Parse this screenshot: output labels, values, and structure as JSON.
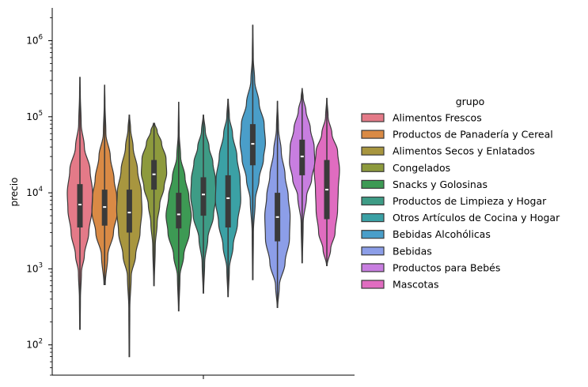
{
  "chart_data": {
    "type": "violin",
    "ylabel": "precio",
    "xlabel": "",
    "yscale": "log",
    "ylim": [
      40,
      2700000
    ],
    "yticks": [
      {
        "value": 100,
        "base": "10",
        "exp": "2"
      },
      {
        "value": 1000,
        "base": "10",
        "exp": "3"
      },
      {
        "value": 10000,
        "base": "10",
        "exp": "4"
      },
      {
        "value": 100000,
        "base": "10",
        "exp": "5"
      },
      {
        "value": 1000000,
        "base": "10",
        "exp": "6"
      }
    ],
    "legend": {
      "title": "grupo",
      "position": "right"
    },
    "series": [
      {
        "name": "Alimentos Frescos",
        "color": "#e47a88",
        "min": 160,
        "q1": 3500,
        "median": 7000,
        "q3": 13000,
        "max": 330000,
        "profile": [
          [
            160,
            0.02
          ],
          [
            400,
            0.04
          ],
          [
            900,
            0.12
          ],
          [
            1500,
            0.35
          ],
          [
            3000,
            0.7
          ],
          [
            6000,
            0.95
          ],
          [
            10000,
            1.0
          ],
          [
            20000,
            0.8
          ],
          [
            40000,
            0.35
          ],
          [
            80000,
            0.1
          ],
          [
            200000,
            0.03
          ],
          [
            330000,
            0.01
          ]
        ]
      },
      {
        "name": "Productos de Panadería y Cereal",
        "color": "#d98a45",
        "min": 620,
        "q1": 3700,
        "median": 6500,
        "q3": 11000,
        "max": 260000,
        "profile": [
          [
            620,
            0.05
          ],
          [
            1500,
            0.25
          ],
          [
            3000,
            0.7
          ],
          [
            5500,
            1.0
          ],
          [
            9000,
            0.95
          ],
          [
            15000,
            0.75
          ],
          [
            30000,
            0.45
          ],
          [
            60000,
            0.1
          ],
          [
            150000,
            0.03
          ],
          [
            260000,
            0.01
          ]
        ]
      },
      {
        "name": "Alimentos Secos y Enlatados",
        "color": "#a8963f",
        "min": 70,
        "q1": 3000,
        "median": 5500,
        "q3": 11000,
        "max": 105000,
        "profile": [
          [
            70,
            0.02
          ],
          [
            300,
            0.04
          ],
          [
            800,
            0.15
          ],
          [
            1500,
            0.5
          ],
          [
            3000,
            0.85
          ],
          [
            6000,
            1.0
          ],
          [
            10000,
            0.95
          ],
          [
            20000,
            0.65
          ],
          [
            40000,
            0.3
          ],
          [
            70000,
            0.1
          ],
          [
            105000,
            0.02
          ]
        ]
      },
      {
        "name": "Congelados",
        "color": "#8d9a3d",
        "min": 600,
        "q1": 11000,
        "median": 17500,
        "q3": 27000,
        "max": 82000,
        "profile": [
          [
            600,
            0.02
          ],
          [
            2000,
            0.1
          ],
          [
            4000,
            0.25
          ],
          [
            7000,
            0.45
          ],
          [
            12000,
            0.8
          ],
          [
            18000,
            1.0
          ],
          [
            28000,
            0.95
          ],
          [
            45000,
            0.6
          ],
          [
            65000,
            0.25
          ],
          [
            82000,
            0.05
          ]
        ]
      },
      {
        "name": "Snacks y Golosinas",
        "color": "#3d9a54",
        "min": 280,
        "q1": 3400,
        "median": 5200,
        "q3": 10000,
        "max": 155000,
        "profile": [
          [
            280,
            0.02
          ],
          [
            800,
            0.1
          ],
          [
            1500,
            0.4
          ],
          [
            3000,
            0.85
          ],
          [
            5000,
            1.0
          ],
          [
            9000,
            0.8
          ],
          [
            16000,
            0.5
          ],
          [
            30000,
            0.15
          ],
          [
            60000,
            0.04
          ],
          [
            155000,
            0.01
          ]
        ]
      },
      {
        "name": "Productos de Limpieza y Hogar",
        "color": "#3e9c86",
        "min": 480,
        "q1": 5000,
        "median": 9500,
        "q3": 16000,
        "max": 105000,
        "profile": [
          [
            480,
            0.02
          ],
          [
            1200,
            0.1
          ],
          [
            2500,
            0.35
          ],
          [
            5000,
            0.8
          ],
          [
            9000,
            1.0
          ],
          [
            15000,
            0.95
          ],
          [
            25000,
            0.75
          ],
          [
            40000,
            0.45
          ],
          [
            65000,
            0.15
          ],
          [
            105000,
            0.02
          ]
        ]
      },
      {
        "name": "Otros Artículos de Cocina y Hogar",
        "color": "#3ba1a5",
        "min": 430,
        "q1": 3500,
        "median": 8500,
        "q3": 17000,
        "max": 170000,
        "profile": [
          [
            430,
            0.02
          ],
          [
            1000,
            0.1
          ],
          [
            2000,
            0.4
          ],
          [
            4000,
            0.75
          ],
          [
            8000,
            1.0
          ],
          [
            15000,
            0.95
          ],
          [
            30000,
            0.7
          ],
          [
            60000,
            0.35
          ],
          [
            100000,
            0.1
          ],
          [
            170000,
            0.02
          ]
        ]
      },
      {
        "name": "Bebidas Alcohólicas",
        "color": "#4a9ec9",
        "min": 720,
        "q1": 23000,
        "median": 44000,
        "q3": 80000,
        "max": 1600000,
        "profile": [
          [
            720,
            0.02
          ],
          [
            3000,
            0.05
          ],
          [
            8000,
            0.2
          ],
          [
            15000,
            0.5
          ],
          [
            28000,
            0.85
          ],
          [
            45000,
            1.0
          ],
          [
            80000,
            0.9
          ],
          [
            150000,
            0.5
          ],
          [
            300000,
            0.15
          ],
          [
            600000,
            0.04
          ],
          [
            1600000,
            0.01
          ]
        ]
      },
      {
        "name": "Bebidas",
        "color": "#8c9ee8",
        "min": 310,
        "q1": 2300,
        "median": 4800,
        "q3": 10000,
        "max": 160000,
        "profile": [
          [
            310,
            0.02
          ],
          [
            600,
            0.15
          ],
          [
            1200,
            0.6
          ],
          [
            2500,
            0.95
          ],
          [
            5000,
            1.0
          ],
          [
            9000,
            0.85
          ],
          [
            17000,
            0.6
          ],
          [
            35000,
            0.3
          ],
          [
            70000,
            0.08
          ],
          [
            160000,
            0.01
          ]
        ]
      },
      {
        "name": "Productos para Bebés",
        "color": "#c87ee0",
        "min": 1200,
        "q1": 17000,
        "median": 30000,
        "q3": 50000,
        "max": 235000,
        "profile": [
          [
            1200,
            0.02
          ],
          [
            4000,
            0.08
          ],
          [
            9000,
            0.35
          ],
          [
            15000,
            0.75
          ],
          [
            25000,
            1.0
          ],
          [
            40000,
            0.95
          ],
          [
            70000,
            0.65
          ],
          [
            120000,
            0.3
          ],
          [
            180000,
            0.08
          ],
          [
            235000,
            0.01
          ]
        ]
      },
      {
        "name": "Mascotas",
        "color": "#e06cc0",
        "min": 1100,
        "q1": 4500,
        "median": 11000,
        "q3": 27000,
        "max": 175000,
        "profile": [
          [
            1100,
            0.02
          ],
          [
            1800,
            0.3
          ],
          [
            3000,
            0.65
          ],
          [
            6000,
            0.85
          ],
          [
            11000,
            0.9
          ],
          [
            20000,
            1.0
          ],
          [
            35000,
            0.85
          ],
          [
            60000,
            0.4
          ],
          [
            100000,
            0.1
          ],
          [
            175000,
            0.01
          ]
        ]
      }
    ]
  }
}
